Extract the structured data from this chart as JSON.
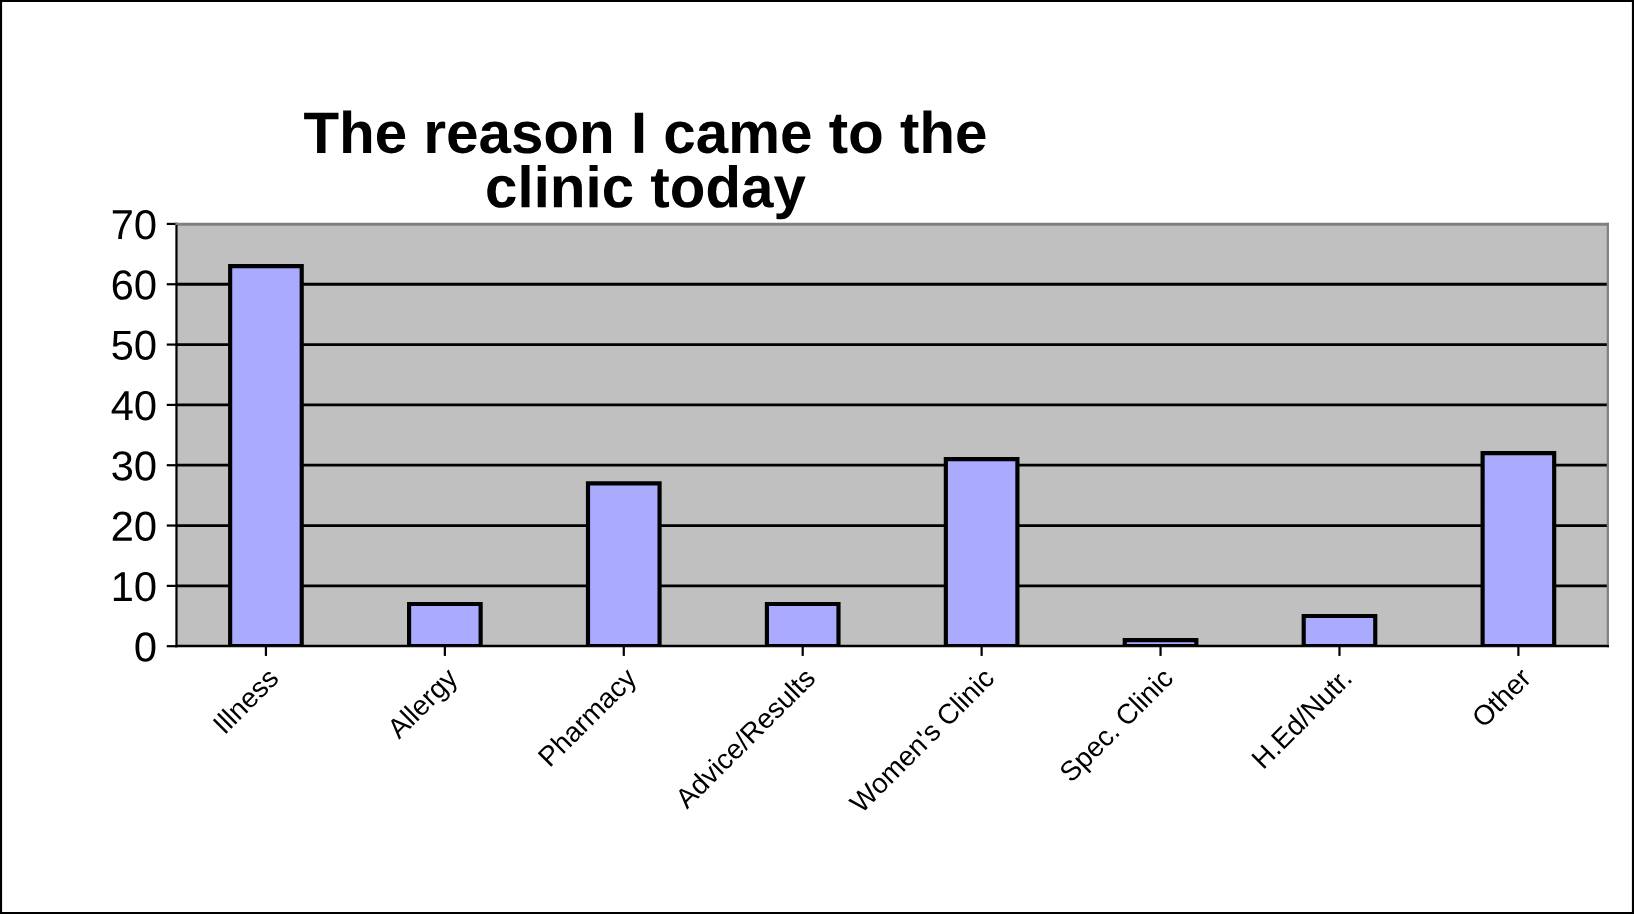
{
  "chart_data": {
    "type": "bar",
    "title": "The reason I came to the\nclinic today",
    "categories": [
      "Illness",
      "Allergy",
      "Pharmacy",
      "Advice/Results",
      "Women's Clinic",
      "Spec. Clinic",
      "H.Ed/Nutr.",
      "Other"
    ],
    "values": [
      63,
      7,
      27,
      7,
      31,
      1,
      5,
      32
    ],
    "color": "#aaaaff",
    "ylim": [
      0,
      70
    ],
    "yticks": [
      0,
      10,
      20,
      30,
      40,
      50,
      60,
      70
    ],
    "grid": "y",
    "legend": false
  }
}
